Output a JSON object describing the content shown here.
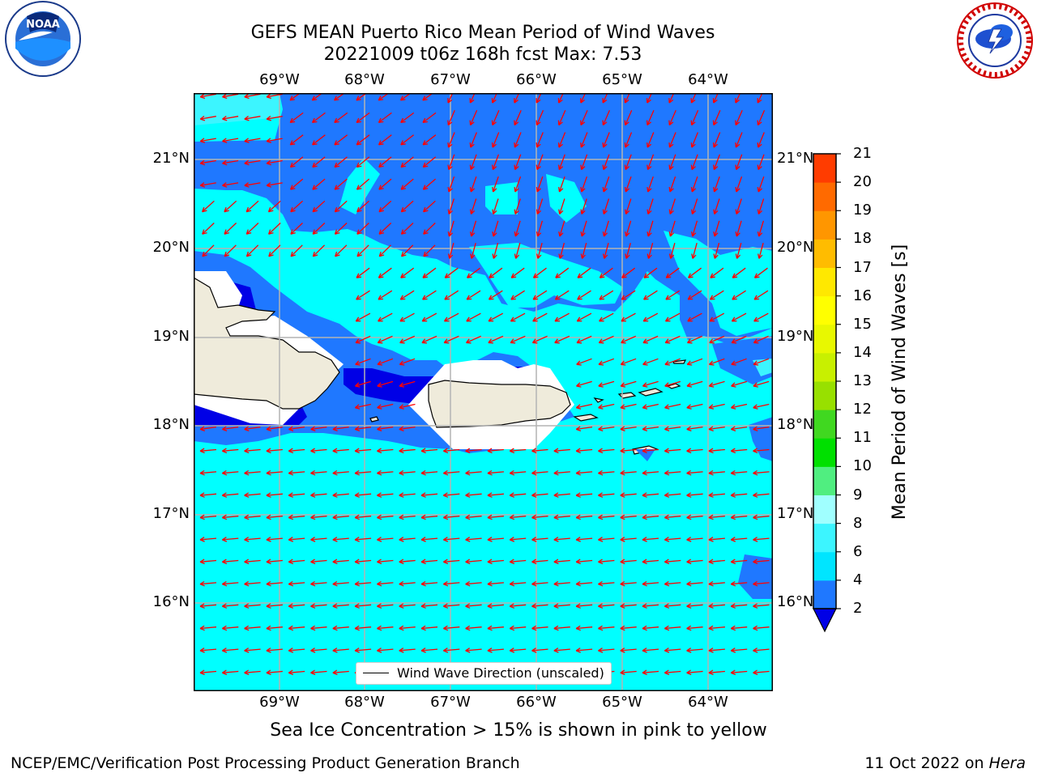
{
  "title": {
    "line1": "GEFS MEAN Puerto Rico Mean Period of Wind Waves",
    "line2": "20221009 t06z 168h fcst   Max: 7.53"
  },
  "logos": {
    "left_icon": "noaa-logo",
    "right_icon": "nws-logo"
  },
  "axes": {
    "lon_labels": [
      "69°W",
      "68°W",
      "67°W",
      "66°W",
      "65°W",
      "64°W"
    ],
    "lat_labels": [
      "21°N",
      "20°N",
      "19°N",
      "18°N",
      "17°N",
      "16°N"
    ]
  },
  "legend": {
    "label": "Wind Wave Direction (unscaled)"
  },
  "colorbar": {
    "label": "Mean Period of Wind Waves [s]",
    "ticks": [
      "2",
      "4",
      "6",
      "8",
      "9",
      "10",
      "11",
      "12",
      "13",
      "14",
      "15",
      "16",
      "17",
      "18",
      "19",
      "20",
      "21"
    ],
    "colors": [
      "#1f78ff",
      "#00e5ff",
      "#3cf5ff",
      "#a0ffff",
      "#50ee80",
      "#00e000",
      "#40d820",
      "#98e000",
      "#c8f000",
      "#e8f800",
      "#ffff00",
      "#ffe800",
      "#ffbc00",
      "#ff9600",
      "#ff6a00",
      "#ff3c00",
      "#ff0000"
    ],
    "under_color": "#0000e6"
  },
  "note": "Sea Ice Concentration > 15% is shown in pink to yellow",
  "footer": {
    "left": "NCEP/EMC/Verification Post Processing Product Generation Branch",
    "right_date": "11 Oct 2022 on ",
    "right_host": "Hera"
  },
  "colors": {
    "cyan": "#00ffff",
    "blue": "#1f78ff",
    "dark_blue": "#0000e6",
    "land": "#efebdb",
    "arrow": "#ff0000",
    "grid": "#b4b4b4"
  }
}
